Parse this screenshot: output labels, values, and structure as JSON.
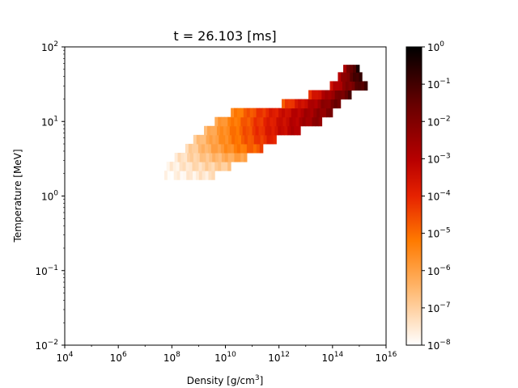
{
  "chart_data": {
    "type": "heatmap",
    "title": "t = 26.103 [ms]",
    "xlabel": {
      "text": "Density [g/cm",
      "sup": "3",
      "tail": "]"
    },
    "ylabel": "Temperature [MeV]",
    "x_scale": "log",
    "y_scale": "log",
    "xlim": [
      10000.0,
      1e+16
    ],
    "ylim": [
      0.01,
      100.0
    ],
    "x_ticks": [
      {
        "base": "10",
        "exp": "4",
        "value": 4
      },
      {
        "base": "10",
        "exp": "6",
        "value": 6
      },
      {
        "base": "10",
        "exp": "8",
        "value": 8
      },
      {
        "base": "10",
        "exp": "10",
        "value": 10
      },
      {
        "base": "10",
        "exp": "12",
        "value": 12
      },
      {
        "base": "10",
        "exp": "14",
        "value": 14
      },
      {
        "base": "10",
        "exp": "16",
        "value": 16
      }
    ],
    "y_ticks": [
      {
        "base": "10",
        "exp": "−2",
        "value": -2
      },
      {
        "base": "10",
        "exp": "−1",
        "value": -1
      },
      {
        "base": "10",
        "exp": "0",
        "value": 0
      },
      {
        "base": "10",
        "exp": "1",
        "value": 1
      },
      {
        "base": "10",
        "exp": "2",
        "value": 2
      }
    ],
    "colorbar": {
      "scale": "log",
      "range": [
        1e-08,
        1.0
      ],
      "colormap": "gist_heat_r",
      "ticks": [
        {
          "base": "10",
          "exp": "−8",
          "value": -8
        },
        {
          "base": "10",
          "exp": "−7",
          "value": -7
        },
        {
          "base": "10",
          "exp": "−6",
          "value": -6
        },
        {
          "base": "10",
          "exp": "−5",
          "value": -5
        },
        {
          "base": "10",
          "exp": "−4",
          "value": -4
        },
        {
          "base": "10",
          "exp": "−3",
          "value": -3
        },
        {
          "base": "10",
          "exp": "−2",
          "value": -2
        },
        {
          "base": "10",
          "exp": "−1",
          "value": -1
        },
        {
          "base": "10",
          "exp": "0",
          "value": 0
        }
      ]
    },
    "grid": false,
    "band_mass_log10": [
      {
        "log_rho": [
          7.6,
          9.6
        ],
        "log_T": [
          0.22,
          0.34
        ],
        "log_val": [
          -8.0,
          -7.4
        ]
      },
      {
        "log_rho": [
          7.8,
          10.2
        ],
        "log_T": [
          0.34,
          0.46
        ],
        "log_val": [
          -7.8,
          -6.8
        ]
      },
      {
        "log_rho": [
          8.1,
          10.8
        ],
        "log_T": [
          0.46,
          0.58
        ],
        "log_val": [
          -7.6,
          -5.9
        ]
      },
      {
        "log_rho": [
          8.5,
          11.4
        ],
        "log_T": [
          0.58,
          0.7
        ],
        "log_val": [
          -7.3,
          -4.6
        ]
      },
      {
        "log_rho": [
          8.8,
          11.9
        ],
        "log_T": [
          0.7,
          0.82
        ],
        "log_val": [
          -7.0,
          -3.8
        ]
      },
      {
        "log_rho": [
          9.2,
          12.8
        ],
        "log_T": [
          0.82,
          0.94
        ],
        "log_val": [
          -6.6,
          -2.8
        ]
      },
      {
        "log_rho": [
          9.6,
          13.6
        ],
        "log_T": [
          0.94,
          1.06
        ],
        "log_val": [
          -6.2,
          -2.2
        ]
      },
      {
        "log_rho": [
          10.2,
          14.0
        ],
        "log_T": [
          1.06,
          1.18
        ],
        "log_val": [
          -5.6,
          -2.0
        ]
      },
      {
        "log_rho": [
          12.1,
          14.3
        ],
        "log_T": [
          1.18,
          1.3
        ],
        "log_val": [
          -4.8,
          -1.6
        ]
      },
      {
        "log_rho": [
          13.1,
          14.7
        ],
        "log_T": [
          1.3,
          1.42
        ],
        "log_val": [
          -4.2,
          -1.3
        ]
      },
      {
        "log_rho": [
          13.9,
          15.3
        ],
        "log_T": [
          1.42,
          1.54
        ],
        "log_val": [
          -3.5,
          -0.9
        ]
      },
      {
        "log_rho": [
          14.2,
          15.1
        ],
        "log_T": [
          1.54,
          1.66
        ],
        "log_val": [
          -3.0,
          -0.6
        ]
      },
      {
        "log_rho": [
          14.4,
          15.0
        ],
        "log_T": [
          1.66,
          1.76
        ],
        "log_val": [
          -2.8,
          -0.5
        ]
      }
    ]
  }
}
